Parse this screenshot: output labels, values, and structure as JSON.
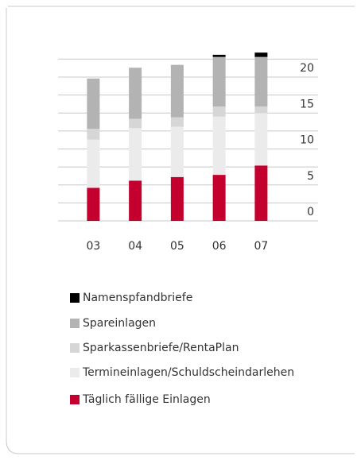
{
  "chart_data": {
    "type": "stacked_bar",
    "categories": [
      "03",
      "04",
      "05",
      "06",
      "07"
    ],
    "series": [
      {
        "name": "Täglich fällige Einlagen",
        "color": "#c4002f",
        "values": [
          4.6,
          5.6,
          6.1,
          6.4,
          7.7
        ]
      },
      {
        "name": "Termineinlagen/Schuldscheindarlehen",
        "color": "#ebebeb",
        "values": [
          6.7,
          7.3,
          7.0,
          8.1,
          7.3
        ]
      },
      {
        "name": "Sparkassenbriefe/RentaPlan",
        "color": "#d6d6d6",
        "values": [
          1.5,
          1.3,
          1.3,
          1.4,
          0.9
        ]
      },
      {
        "name": "Spareinlagen",
        "color": "#b3b3b3",
        "values": [
          7.0,
          7.1,
          7.3,
          6.9,
          6.9
        ]
      },
      {
        "name": "Namenspfandbriefe",
        "color": "#000000",
        "values": [
          0,
          0,
          0,
          0.3,
          0.6
        ]
      }
    ],
    "ylim": [
      0,
      23.5
    ],
    "yticks": [
      0,
      5,
      10,
      15,
      20
    ],
    "minor_grid": [
      2.5,
      7.5,
      12.5,
      17.5,
      22.5
    ],
    "grid": true,
    "legend": "bottom"
  }
}
